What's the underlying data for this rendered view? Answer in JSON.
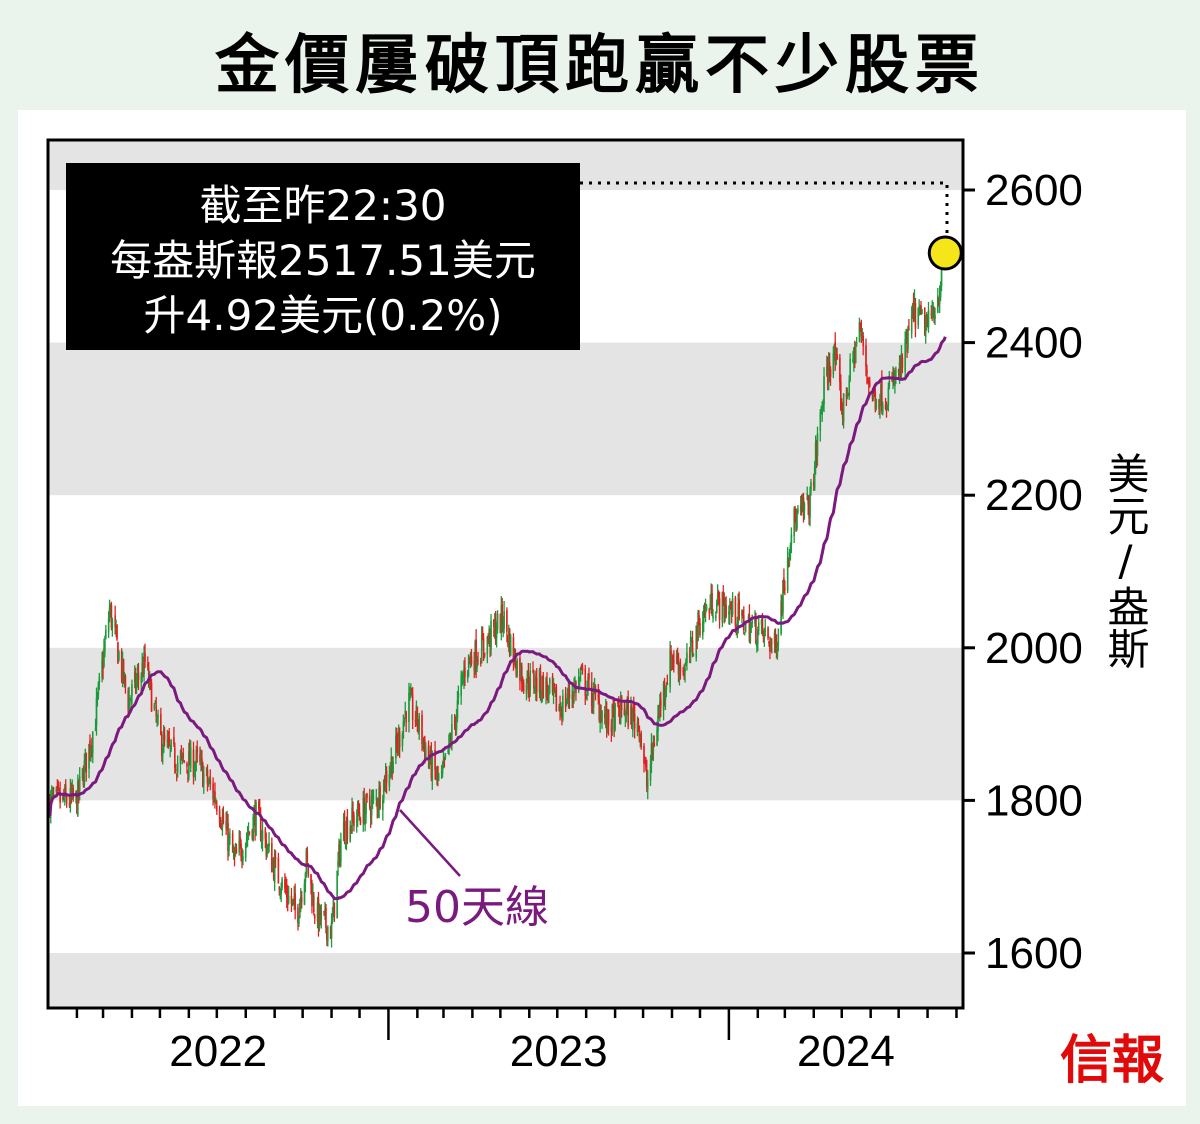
{
  "title": "金價屢破頂跑贏不少股票",
  "annotation": {
    "line1": "截至昨22:30",
    "line2": "每盎斯報2517.51美元",
    "line3": "升4.92美元(0.2%)"
  },
  "logo": "信報",
  "chart_data": {
    "type": "candlestick",
    "title": "金價屢破頂跑贏不少股票",
    "ylabel": "美元/盎斯",
    "ylim": [
      1530,
      2665
    ],
    "yticks": [
      1600,
      1800,
      2000,
      2200,
      2400,
      2600
    ],
    "xlim": [
      "2022-01-01",
      "2024-09-08"
    ],
    "xtick_labels": [
      "2022",
      "2023",
      "2024"
    ],
    "grid": "alternating horizontal bands",
    "colors": {
      "up": "#1a9a3a",
      "down": "#e0201e",
      "ma": "#7b1a7e",
      "highlight": "#f5e61a",
      "band": "#e4e4e4"
    },
    "ma_label": "50天線",
    "highlight_value": 2517.51,
    "close_series": [
      [
        "2022-01-01",
        1800
      ],
      [
        "2022-02-01",
        1800
      ],
      [
        "2022-02-20",
        1900
      ],
      [
        "2022-03-08",
        2050
      ],
      [
        "2022-03-28",
        1930
      ],
      [
        "2022-04-15",
        1980
      ],
      [
        "2022-05-01",
        1880
      ],
      [
        "2022-05-20",
        1850
      ],
      [
        "2022-06-10",
        1850
      ],
      [
        "2022-07-01",
        1800
      ],
      [
        "2022-07-20",
        1720
      ],
      [
        "2022-08-12",
        1780
      ],
      [
        "2022-09-01",
        1710
      ],
      [
        "2022-09-25",
        1650
      ],
      [
        "2022-10-05",
        1720
      ],
      [
        "2022-10-15",
        1650
      ],
      [
        "2022-11-01",
        1630
      ],
      [
        "2022-11-12",
        1760
      ],
      [
        "2022-11-28",
        1780
      ],
      [
        "2022-12-20",
        1800
      ],
      [
        "2023-01-10",
        1870
      ],
      [
        "2023-01-22",
        1930
      ],
      [
        "2023-02-02",
        1900
      ],
      [
        "2023-02-14",
        1850
      ],
      [
        "2023-02-26",
        1820
      ],
      [
        "2023-03-14",
        1910
      ],
      [
        "2023-03-25",
        1980
      ],
      [
        "2023-04-12",
        2000
      ],
      [
        "2023-05-04",
        2040
      ],
      [
        "2023-05-15",
        1990
      ],
      [
        "2023-05-26",
        1960
      ],
      [
        "2023-06-17",
        1950
      ],
      [
        "2023-07-04",
        1920
      ],
      [
        "2023-07-26",
        1960
      ],
      [
        "2023-08-12",
        1930
      ],
      [
        "2023-08-24",
        1900
      ],
      [
        "2023-09-10",
        1920
      ],
      [
        "2023-09-27",
        1900
      ],
      [
        "2023-10-05",
        1820
      ],
      [
        "2023-10-20",
        1930
      ],
      [
        "2023-11-01",
        1990
      ],
      [
        "2023-11-15",
        1970
      ],
      [
        "2023-12-02",
        2040
      ],
      [
        "2023-12-15",
        2060
      ],
      [
        "2024-01-02",
        2050
      ],
      [
        "2024-01-20",
        2030
      ],
      [
        "2024-02-05",
        2020
      ],
      [
        "2024-02-20",
        2000
      ],
      [
        "2024-03-08",
        2160
      ],
      [
        "2024-03-28",
        2190
      ],
      [
        "2024-04-12",
        2340
      ],
      [
        "2024-04-22",
        2390
      ],
      [
        "2024-05-02",
        2310
      ],
      [
        "2024-05-20",
        2420
      ],
      [
        "2024-06-02",
        2330
      ],
      [
        "2024-06-18",
        2330
      ],
      [
        "2024-07-05",
        2370
      ],
      [
        "2024-07-17",
        2440
      ],
      [
        "2024-08-01",
        2420
      ],
      [
        "2024-08-12",
        2460
      ],
      [
        "2024-08-20",
        2517.51
      ]
    ]
  }
}
